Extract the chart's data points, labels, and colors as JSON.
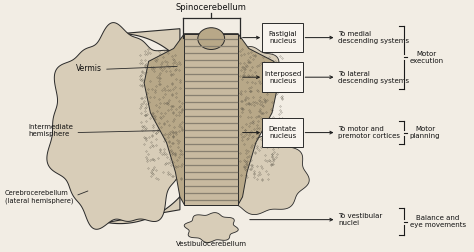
{
  "bg_color": "#f2ede4",
  "fig_width": 4.74,
  "fig_height": 2.52,
  "dpi": 100,
  "labels": {
    "spinocerebellum": "Spinocerebellum",
    "vermis": "Vermis",
    "intermediate_hemisphere": "Intermediate\nhemisphere",
    "cerebrocerebellum": "Cerebrocerebellum\n(lateral hemisphere)",
    "vestibulocerebellum": "Vestibulocerebellum",
    "fastigial_nucleus": "Fastigial\nnucleus",
    "interposed_nucleus": "Interposed\nnucleus",
    "dentate_nucleus": "Dentate\nnucleus",
    "to_medial": "To medial\ndescending systems",
    "to_lateral": "To lateral\ndescending systems",
    "to_motor": "To motor and\npremotor cortices",
    "to_vestibular": "To vestibular\nnuclei",
    "motor_execution": "Motor\nexecution",
    "motor_planning": "Motor\nplanning",
    "balance_eye": "Balance and\neye movements"
  },
  "colors": {
    "outline": "#2a2a2a",
    "fill_hemi": "#d8cdb8",
    "fill_stipple": "#b8a888",
    "fill_stem_bg": "#c8baa0",
    "fill_stem_line": "#888070",
    "box_fill": "#f8f4ee",
    "box_outline": "#2a2a2a",
    "arrow": "#1a1a1a",
    "text": "#111111",
    "brace_line": "#1a1a1a"
  }
}
